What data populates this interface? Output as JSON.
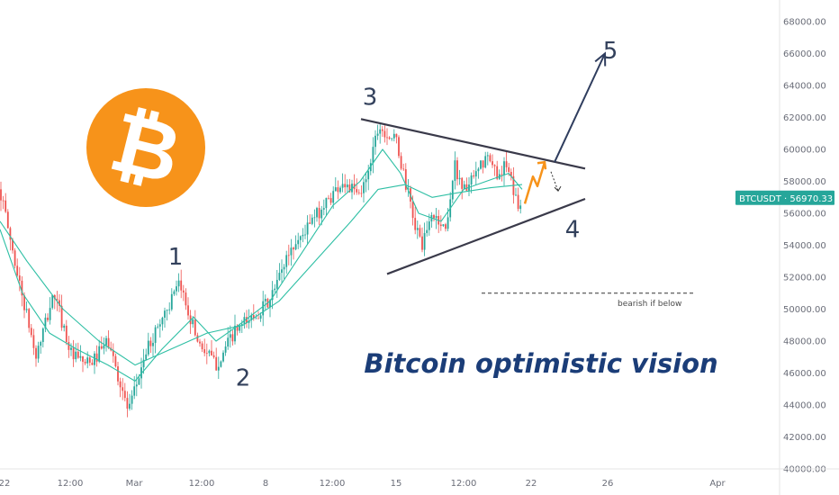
{
  "chart_data": {
    "type": "candlestick",
    "symbol": "BTCUSDT",
    "last_price": "56970.33",
    "ylim": [
      40000,
      69000
    ],
    "y_ticks": [
      "40000.00",
      "42000.00",
      "44000.00",
      "46000.00",
      "48000.00",
      "50000.00",
      "52000.00",
      "54000.00",
      "56000.00",
      "58000.00",
      "60000.00",
      "62000.00",
      "64000.00",
      "66000.00",
      "68000.00"
    ],
    "x_ticks": [
      "22",
      "12:00",
      "Mar",
      "12:00",
      "8",
      "12:00",
      "15",
      "12:00",
      "22",
      "26",
      "Apr"
    ],
    "grid": false,
    "colors": {
      "up": "#26a69a",
      "down": "#ef5350",
      "ma": "#2ebfa4",
      "trend": "#3a3a4a",
      "arrow": "#2f3d5e",
      "projection": "#f7931a",
      "badge": "#26a69a",
      "logo": "#f7931a"
    },
    "price_path": [
      [
        57500,
        0
      ],
      [
        52000,
        20
      ],
      [
        47000,
        40
      ],
      [
        51000,
        60
      ],
      [
        47000,
        80
      ],
      [
        46500,
        100
      ],
      [
        48000,
        120
      ],
      [
        43500,
        143
      ],
      [
        47000,
        160
      ],
      [
        49500,
        180
      ],
      [
        51500,
        200
      ],
      [
        48000,
        220
      ],
      [
        46500,
        240
      ],
      [
        48500,
        260
      ],
      [
        49500,
        280
      ],
      [
        50500,
        300
      ],
      [
        53500,
        320
      ],
      [
        55000,
        340
      ],
      [
        56500,
        360
      ],
      [
        58000,
        380
      ],
      [
        57000,
        400
      ],
      [
        59000,
        410
      ],
      [
        61500,
        420
      ],
      [
        60500,
        440
      ],
      [
        57500,
        452
      ],
      [
        55000,
        462
      ],
      [
        54000,
        470
      ],
      [
        56000,
        480
      ],
      [
        55000,
        495
      ],
      [
        59000,
        505
      ],
      [
        57500,
        515
      ],
      [
        58000,
        525
      ],
      [
        59500,
        540
      ],
      [
        58500,
        552
      ],
      [
        59000,
        562
      ],
      [
        56500,
        575
      ],
      [
        56970,
        580
      ]
    ],
    "ma_fast": [
      [
        55000,
        0
      ],
      [
        51000,
        25
      ],
      [
        48500,
        55
      ],
      [
        47500,
        85
      ],
      [
        46500,
        120
      ],
      [
        45500,
        150
      ],
      [
        47500,
        180
      ],
      [
        49500,
        215
      ],
      [
        48000,
        240
      ],
      [
        49000,
        265
      ],
      [
        50500,
        300
      ],
      [
        53500,
        335
      ],
      [
        56500,
        370
      ],
      [
        58000,
        400
      ],
      [
        60000,
        425
      ],
      [
        58500,
        445
      ],
      [
        56000,
        465
      ],
      [
        55500,
        490
      ],
      [
        57500,
        515
      ],
      [
        58000,
        540
      ],
      [
        58500,
        565
      ],
      [
        57500,
        580
      ]
    ],
    "ma_slow": [
      [
        55500,
        0
      ],
      [
        53000,
        30
      ],
      [
        50000,
        70
      ],
      [
        48000,
        110
      ],
      [
        46500,
        150
      ],
      [
        47500,
        190
      ],
      [
        48500,
        230
      ],
      [
        49000,
        270
      ],
      [
        50500,
        310
      ],
      [
        53000,
        350
      ],
      [
        55500,
        390
      ],
      [
        57500,
        420
      ],
      [
        57800,
        450
      ],
      [
        57000,
        480
      ],
      [
        57300,
        510
      ],
      [
        57600,
        545
      ],
      [
        57800,
        580
      ]
    ],
    "annotations": {
      "waves": [
        {
          "label": "1",
          "x": 195,
          "price": 52800
        },
        {
          "label": "2",
          "x": 270,
          "price": 45200
        },
        {
          "label": "3",
          "x": 411,
          "price": 62800
        },
        {
          "label": "4",
          "x": 636,
          "price": 54500
        },
        {
          "label": "5",
          "x": 678,
          "price": 65700
        }
      ],
      "upper_trendline": [
        [
          401,
          61900
        ],
        [
          650,
          58800
        ]
      ],
      "lower_trendline": [
        [
          430,
          52200
        ],
        [
          650,
          56900
        ]
      ],
      "target_arrow": [
        [
          616,
          59200
        ],
        [
          672,
          66000
        ]
      ],
      "pullback_arrow": [
        [
          612,
          58600
        ],
        [
          620,
          57400
        ]
      ],
      "projection_zigzag": [
        [
          583,
          56600
        ],
        [
          592,
          58300
        ],
        [
          597,
          57700
        ],
        [
          605,
          59200
        ]
      ],
      "bearish_level": {
        "price": 51000,
        "x1": 535,
        "x2": 772
      },
      "bearish_text": "bearish if below",
      "title": "Bitcoin optimistic vision"
    },
    "logo_glyph": "₿"
  }
}
